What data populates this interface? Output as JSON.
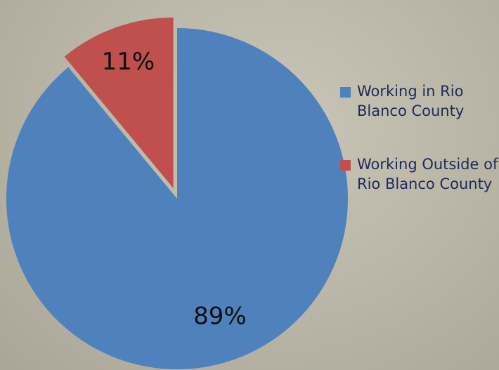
{
  "chart_data": {
    "type": "pie",
    "title": "",
    "legend_position": "right",
    "slices": [
      {
        "label": "Working in Rio Blanco County",
        "value": 89,
        "display": "89%",
        "color": "#4f81bd",
        "exploded": false
      },
      {
        "label": "Working Outside of Rio Blanco County",
        "value": 11,
        "display": "11%",
        "color": "#c0504d",
        "exploded": true
      }
    ]
  }
}
